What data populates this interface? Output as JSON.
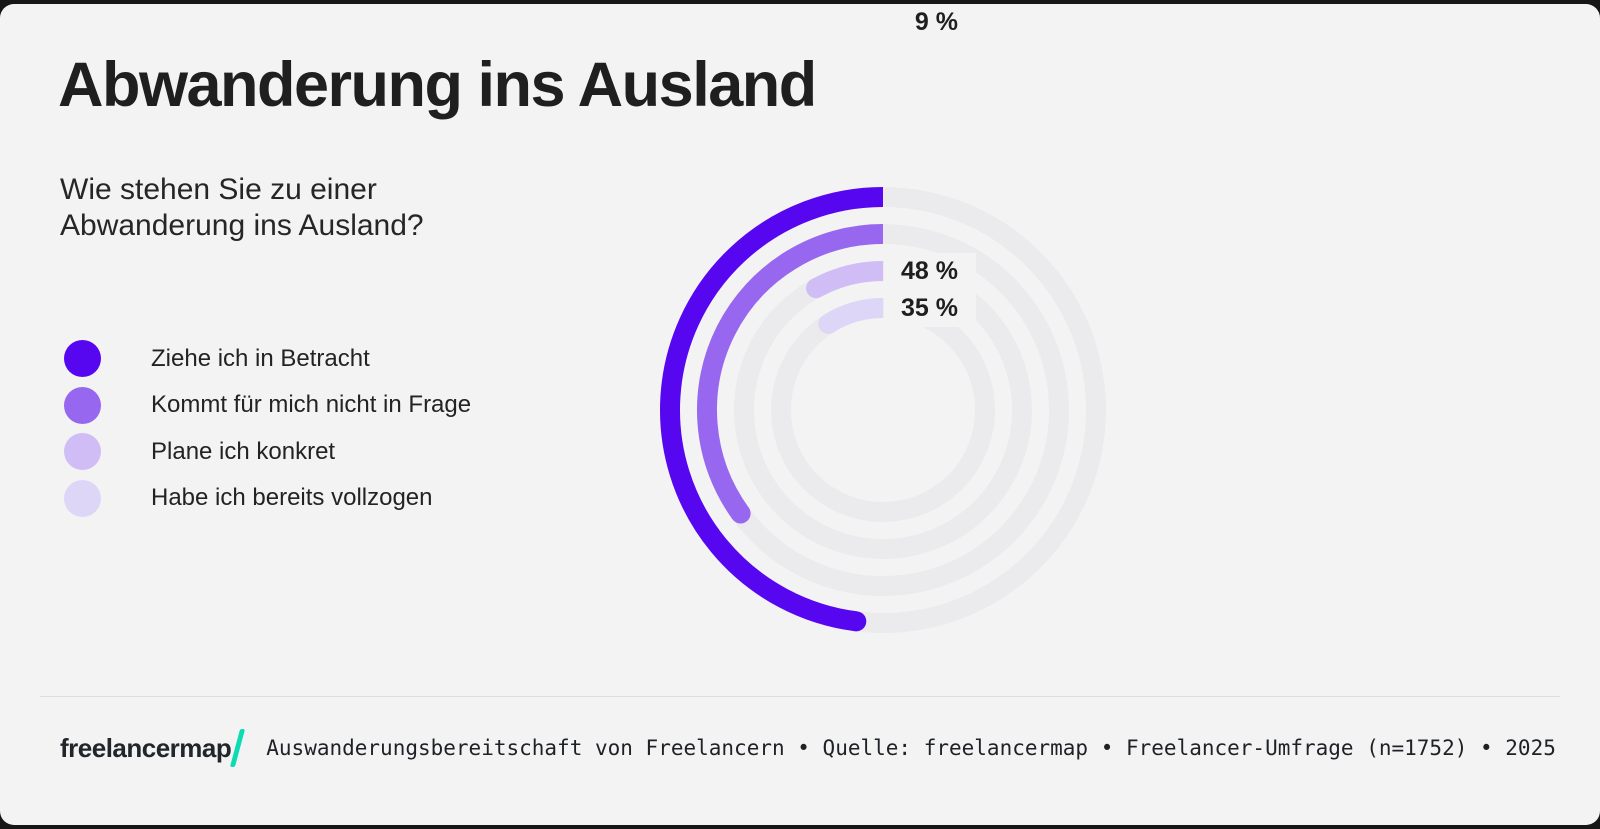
{
  "header": {
    "title": "Abwanderung ins Ausland",
    "question_line1": "Wie stehen Sie zu einer",
    "question_line2": "Abwanderung ins Ausland?"
  },
  "colors": {
    "background": "#f4f3f4",
    "frame": "#161616",
    "track": "#ebebee",
    "divider": "#dddcde",
    "brand_teal": "#0bdcb3"
  },
  "chart_data": {
    "type": "radial-bar",
    "unit": "%",
    "max_value": 100,
    "start_position": "top",
    "direction": "counterclockwise",
    "legend_position": "left",
    "series": [
      {
        "name": "Ziehe ich in Betracht",
        "value": 48,
        "display": "48 %",
        "color": "#5707f0"
      },
      {
        "name": "Kommt für mich nicht in Frage",
        "value": 35,
        "display": "35 %",
        "color": "#9767f0"
      },
      {
        "name": "Plane ich konkret",
        "value": 8,
        "display": "8 %",
        "color": "#d0bdf5"
      },
      {
        "name": "Habe ich bereits vollzogen",
        "value": 9,
        "display": "9 %",
        "color": "#ded6f7"
      }
    ]
  },
  "footer": {
    "logo_text": "freelancermap",
    "caption": "Auswanderungsbereitschaft von Freelancern • Quelle: freelancermap • Freelancer-Umfrage (n=1752) • 2025"
  }
}
